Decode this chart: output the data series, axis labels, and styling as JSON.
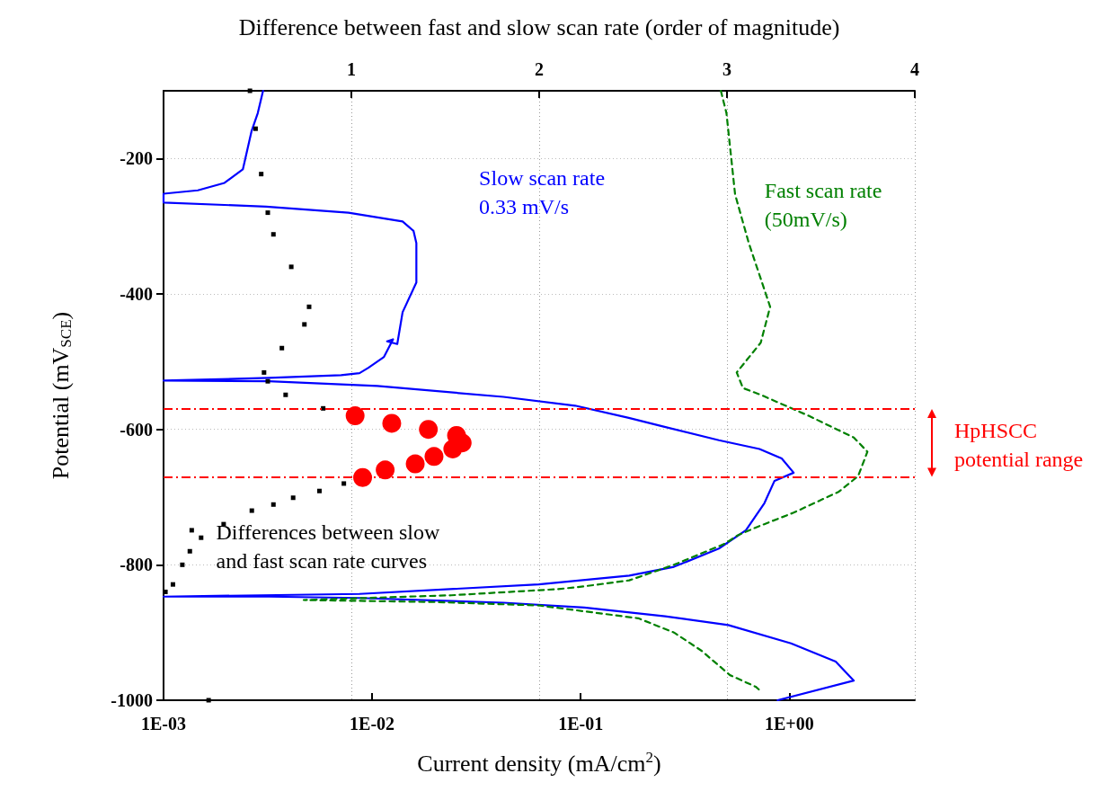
{
  "chart_data": {
    "type": "line",
    "x2label": "Difference between fast and slow scan rate (order of magnitude)",
    "xlabel": "Current density (mA/cm$^{2}$)",
    "ylabel": "Potential (mV$_{SCE}$)",
    "log": "x",
    "xlim": [
      0.001,
      4
    ],
    "xticks": [
      {
        "value": 0.001,
        "label": "1E-03"
      },
      {
        "value": 0.01,
        "label": "1E-02"
      },
      {
        "value": 0.1,
        "label": "1E-01"
      },
      {
        "value": 1,
        "label": "1E+00"
      }
    ],
    "x2lim": [
      0,
      4
    ],
    "x2ticks": [
      1,
      2,
      3,
      4
    ],
    "ylim": [
      -1000,
      -100
    ],
    "yticks": [
      -1000,
      -800,
      -600,
      -400,
      -200
    ],
    "grid": true,
    "series": [
      {
        "name": "Slow scan rate 0.33 mV/s",
        "color": "#0000ff",
        "line_style": "solid",
        "marker": "none",
        "x": [
          0.88,
          2.04,
          1.67,
          1.02,
          0.51,
          0.254,
          0.104,
          0.0426,
          0.0087,
          0.0032,
          0.001,
          0.0087,
          0.063,
          0.171,
          0.28,
          0.46,
          0.62,
          0.76,
          0.85,
          1.05,
          0.92,
          0.72,
          0.46,
          0.25,
          0.17,
          0.094,
          0.0426,
          0.0106,
          0.0032,
          0.001,
          0.0032,
          0.0071,
          0.0087,
          0.0096,
          0.0114,
          0.0126,
          0.0118,
          0.0132,
          0.014,
          0.0163,
          0.0163,
          0.0158,
          0.014,
          0.0077,
          0.0031,
          0.001,
          0.001,
          0.00146,
          0.00196,
          0.0024,
          0.00264,
          0.00283,
          0.003
        ],
        "values": [
          -1000,
          -971,
          -943,
          -916,
          -889,
          -876,
          -863,
          -856,
          -849,
          -847,
          -847,
          -843,
          -829,
          -816,
          -803,
          -776,
          -749,
          -709,
          -676,
          -664,
          -643,
          -629,
          -616,
          -596,
          -583,
          -565,
          -552,
          -536,
          -529,
          -528,
          -524,
          -520,
          -517,
          -509,
          -493,
          -467,
          -470,
          -474,
          -427,
          -383,
          -325,
          -307,
          -293,
          -280,
          -271,
          -265,
          -252,
          -247,
          -236,
          -216,
          -160,
          -133,
          -100
        ]
      },
      {
        "name": "Fast scan rate (50mV/s)",
        "color": "#008000",
        "line_style": "dashed",
        "marker": "none",
        "x": [
          0.47,
          0.5,
          0.55,
          0.64,
          0.81,
          0.73,
          0.56,
          0.6,
          0.73,
          1.24,
          2.04,
          2.37,
          2.14,
          1.73,
          1.05,
          0.69,
          0.57,
          0.49,
          0.28,
          0.171,
          0.097,
          0.077,
          0.024,
          0.0047,
          0.02,
          0.063,
          0.189,
          0.28,
          0.38,
          0.52,
          0.69,
          0.74
        ],
        "values": [
          -100,
          -133,
          -253,
          -325,
          -419,
          -472,
          -516,
          -539,
          -549,
          -580,
          -612,
          -633,
          -669,
          -692,
          -723,
          -745,
          -756,
          -769,
          -800,
          -823,
          -833,
          -836,
          -845,
          -852,
          -855,
          -860,
          -879,
          -900,
          -927,
          -963,
          -980,
          -988
        ]
      },
      {
        "name": "Differences between slow and fast scan rate curves",
        "type": "scatter",
        "axis": "x2",
        "color": "#000000",
        "marker": "square",
        "x": [
          0.46,
          0.49,
          0.52,
          0.555,
          0.585,
          0.68,
          0.775,
          0.75,
          0.63,
          0.535,
          0.555,
          0.65,
          0.85,
          0.96,
          0.83,
          0.69,
          0.585,
          0.47,
          0.32,
          0.2,
          0.15,
          0.14,
          0.1,
          0.05,
          0.01,
          0.24
        ],
        "values": [
          -100,
          -156,
          -223,
          -280,
          -312,
          -360,
          -419,
          -445,
          -480,
          -516,
          -529,
          -549,
          -569,
          -680,
          -691,
          -701,
          -711,
          -720,
          -740,
          -760,
          -749,
          -780,
          -800,
          -829,
          -840,
          -1000
        ]
      },
      {
        "type": "scatter",
        "axis": "x2",
        "color": "#ff0000",
        "marker": "circle",
        "x": [
          1.02,
          1.215,
          1.41,
          1.56,
          1.59,
          1.54,
          1.44,
          1.34,
          1.18,
          1.06
        ],
        "values": [
          -580,
          -591,
          -600,
          -609,
          -620,
          -629,
          -640,
          -651,
          -660,
          -671
        ]
      }
    ],
    "ref_lines": [
      {
        "axis": "y",
        "value": -570,
        "color": "#ff0000",
        "line_style": "dashdot"
      },
      {
        "axis": "y",
        "value": -670,
        "color": "#ff0000",
        "line_style": "dashdot"
      }
    ],
    "annotations": [
      "HpHSCC potential range"
    ]
  }
}
